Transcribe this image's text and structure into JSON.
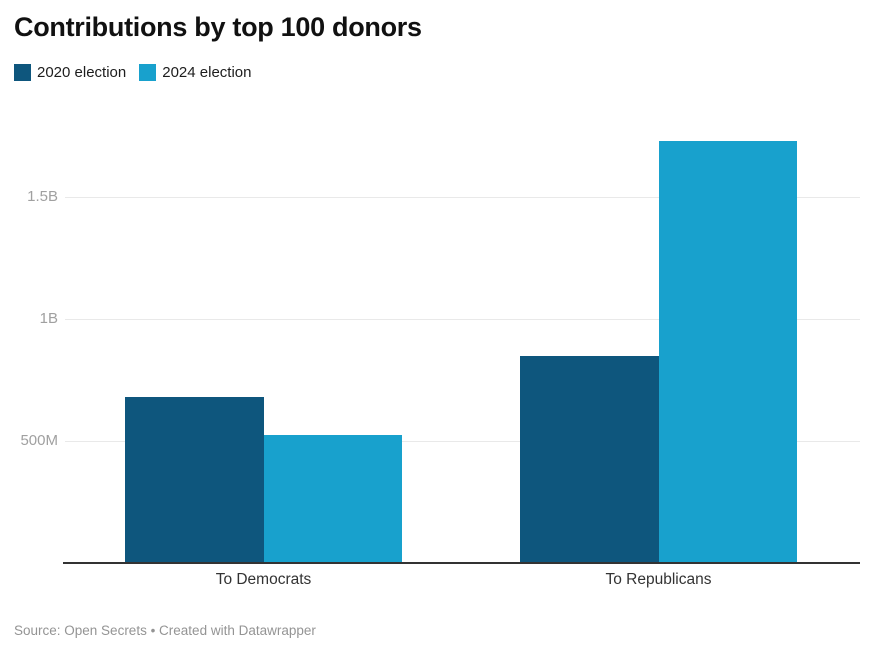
{
  "header": {
    "title": "Contributions by top 100 donors"
  },
  "footer": {
    "source": "Source: Open Secrets • Created with Datawrapper"
  },
  "colors": {
    "series_2020": "#0e567d",
    "series_2024": "#18a1cd",
    "gridline": "#e9e9e9",
    "axis_line": "#333333",
    "tick_text": "#a0a0a0",
    "category_text": "#333333",
    "source_text": "#949494",
    "title_text": "#111111"
  },
  "chart_data": {
    "type": "bar",
    "title": "Contributions by top 100 donors",
    "categories": [
      "To Democrats",
      "To Republicans"
    ],
    "series": [
      {
        "name": "2020 election",
        "color": "#0e567d",
        "values_millions": [
          680,
          850
        ]
      },
      {
        "name": "2024 election",
        "color": "#18a1cd",
        "values_millions": [
          525,
          1730
        ]
      }
    ],
    "value_unit": "USD millions",
    "y_ticks": [
      {
        "value_millions": 500,
        "label": "500M"
      },
      {
        "value_millions": 1000,
        "label": "1B"
      },
      {
        "value_millions": 1500,
        "label": "1.5B"
      }
    ],
    "ylim_millions": [
      0,
      1780
    ],
    "grid": true,
    "legend_position": "top-left",
    "xlabel": "",
    "ylabel": ""
  }
}
